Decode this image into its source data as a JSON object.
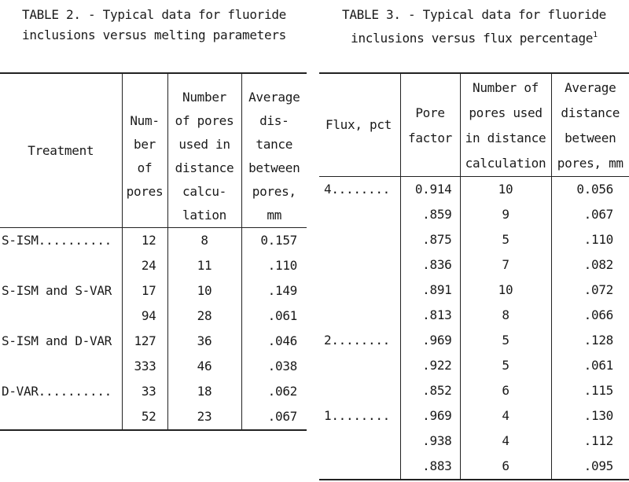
{
  "table2": {
    "caption_line1": "TABLE 2. - Typical data for fluoride",
    "caption_line2": "inclusions versus melting parameters",
    "headers": {
      "treatment": "Treatment",
      "pores_lines": [
        "Num-",
        "ber",
        "of",
        "pores"
      ],
      "used_lines": [
        "Number",
        "of pores",
        "used in",
        "distance",
        "calcu-",
        "lation"
      ],
      "avg_lines": [
        "Average",
        "dis-",
        "tance",
        "between",
        "pores,",
        "mm"
      ]
    },
    "rows": [
      [
        "S-ISM..........",
        "12",
        "8",
        "0.157"
      ],
      [
        "",
        "24",
        "11",
        ".110"
      ],
      [
        "S-ISM and S-VAR",
        "17",
        "10",
        ".149"
      ],
      [
        "",
        "94",
        "28",
        ".061"
      ],
      [
        "S-ISM and D-VAR",
        "127",
        "36",
        ".046"
      ],
      [
        "",
        "333",
        "46",
        ".038"
      ],
      [
        "D-VAR..........",
        "33",
        "18",
        ".062"
      ],
      [
        "",
        "52",
        "23",
        ".067"
      ]
    ]
  },
  "table3": {
    "caption_line1": "TABLE 3. - Typical data for fluoride",
    "caption_line2": "inclusions versus flux percentage",
    "caption_footnote": "1",
    "headers": {
      "flux": "Flux, pct",
      "pore_lines": [
        "Pore",
        "factor"
      ],
      "used_lines": [
        "Number of",
        "pores used",
        "in distance",
        "calculation"
      ],
      "avg_lines": [
        "Average",
        "distance",
        "between",
        "pores, mm"
      ]
    },
    "rows": [
      [
        "4........",
        "0.914",
        "10",
        "0.056"
      ],
      [
        "",
        ".859",
        "9",
        ".067"
      ],
      [
        "",
        ".875",
        "5",
        ".110"
      ],
      [
        "",
        ".836",
        "7",
        ".082"
      ],
      [
        "",
        ".891",
        "10",
        ".072"
      ],
      [
        "",
        ".813",
        "8",
        ".066"
      ],
      [
        "2........",
        ".969",
        "5",
        ".128"
      ],
      [
        "",
        ".922",
        "5",
        ".061"
      ],
      [
        "",
        ".852",
        "6",
        ".115"
      ],
      [
        "1........",
        ".969",
        "4",
        ".130"
      ],
      [
        "",
        ".938",
        "4",
        ".112"
      ],
      [
        "",
        ".883",
        "6",
        ".095"
      ]
    ]
  }
}
